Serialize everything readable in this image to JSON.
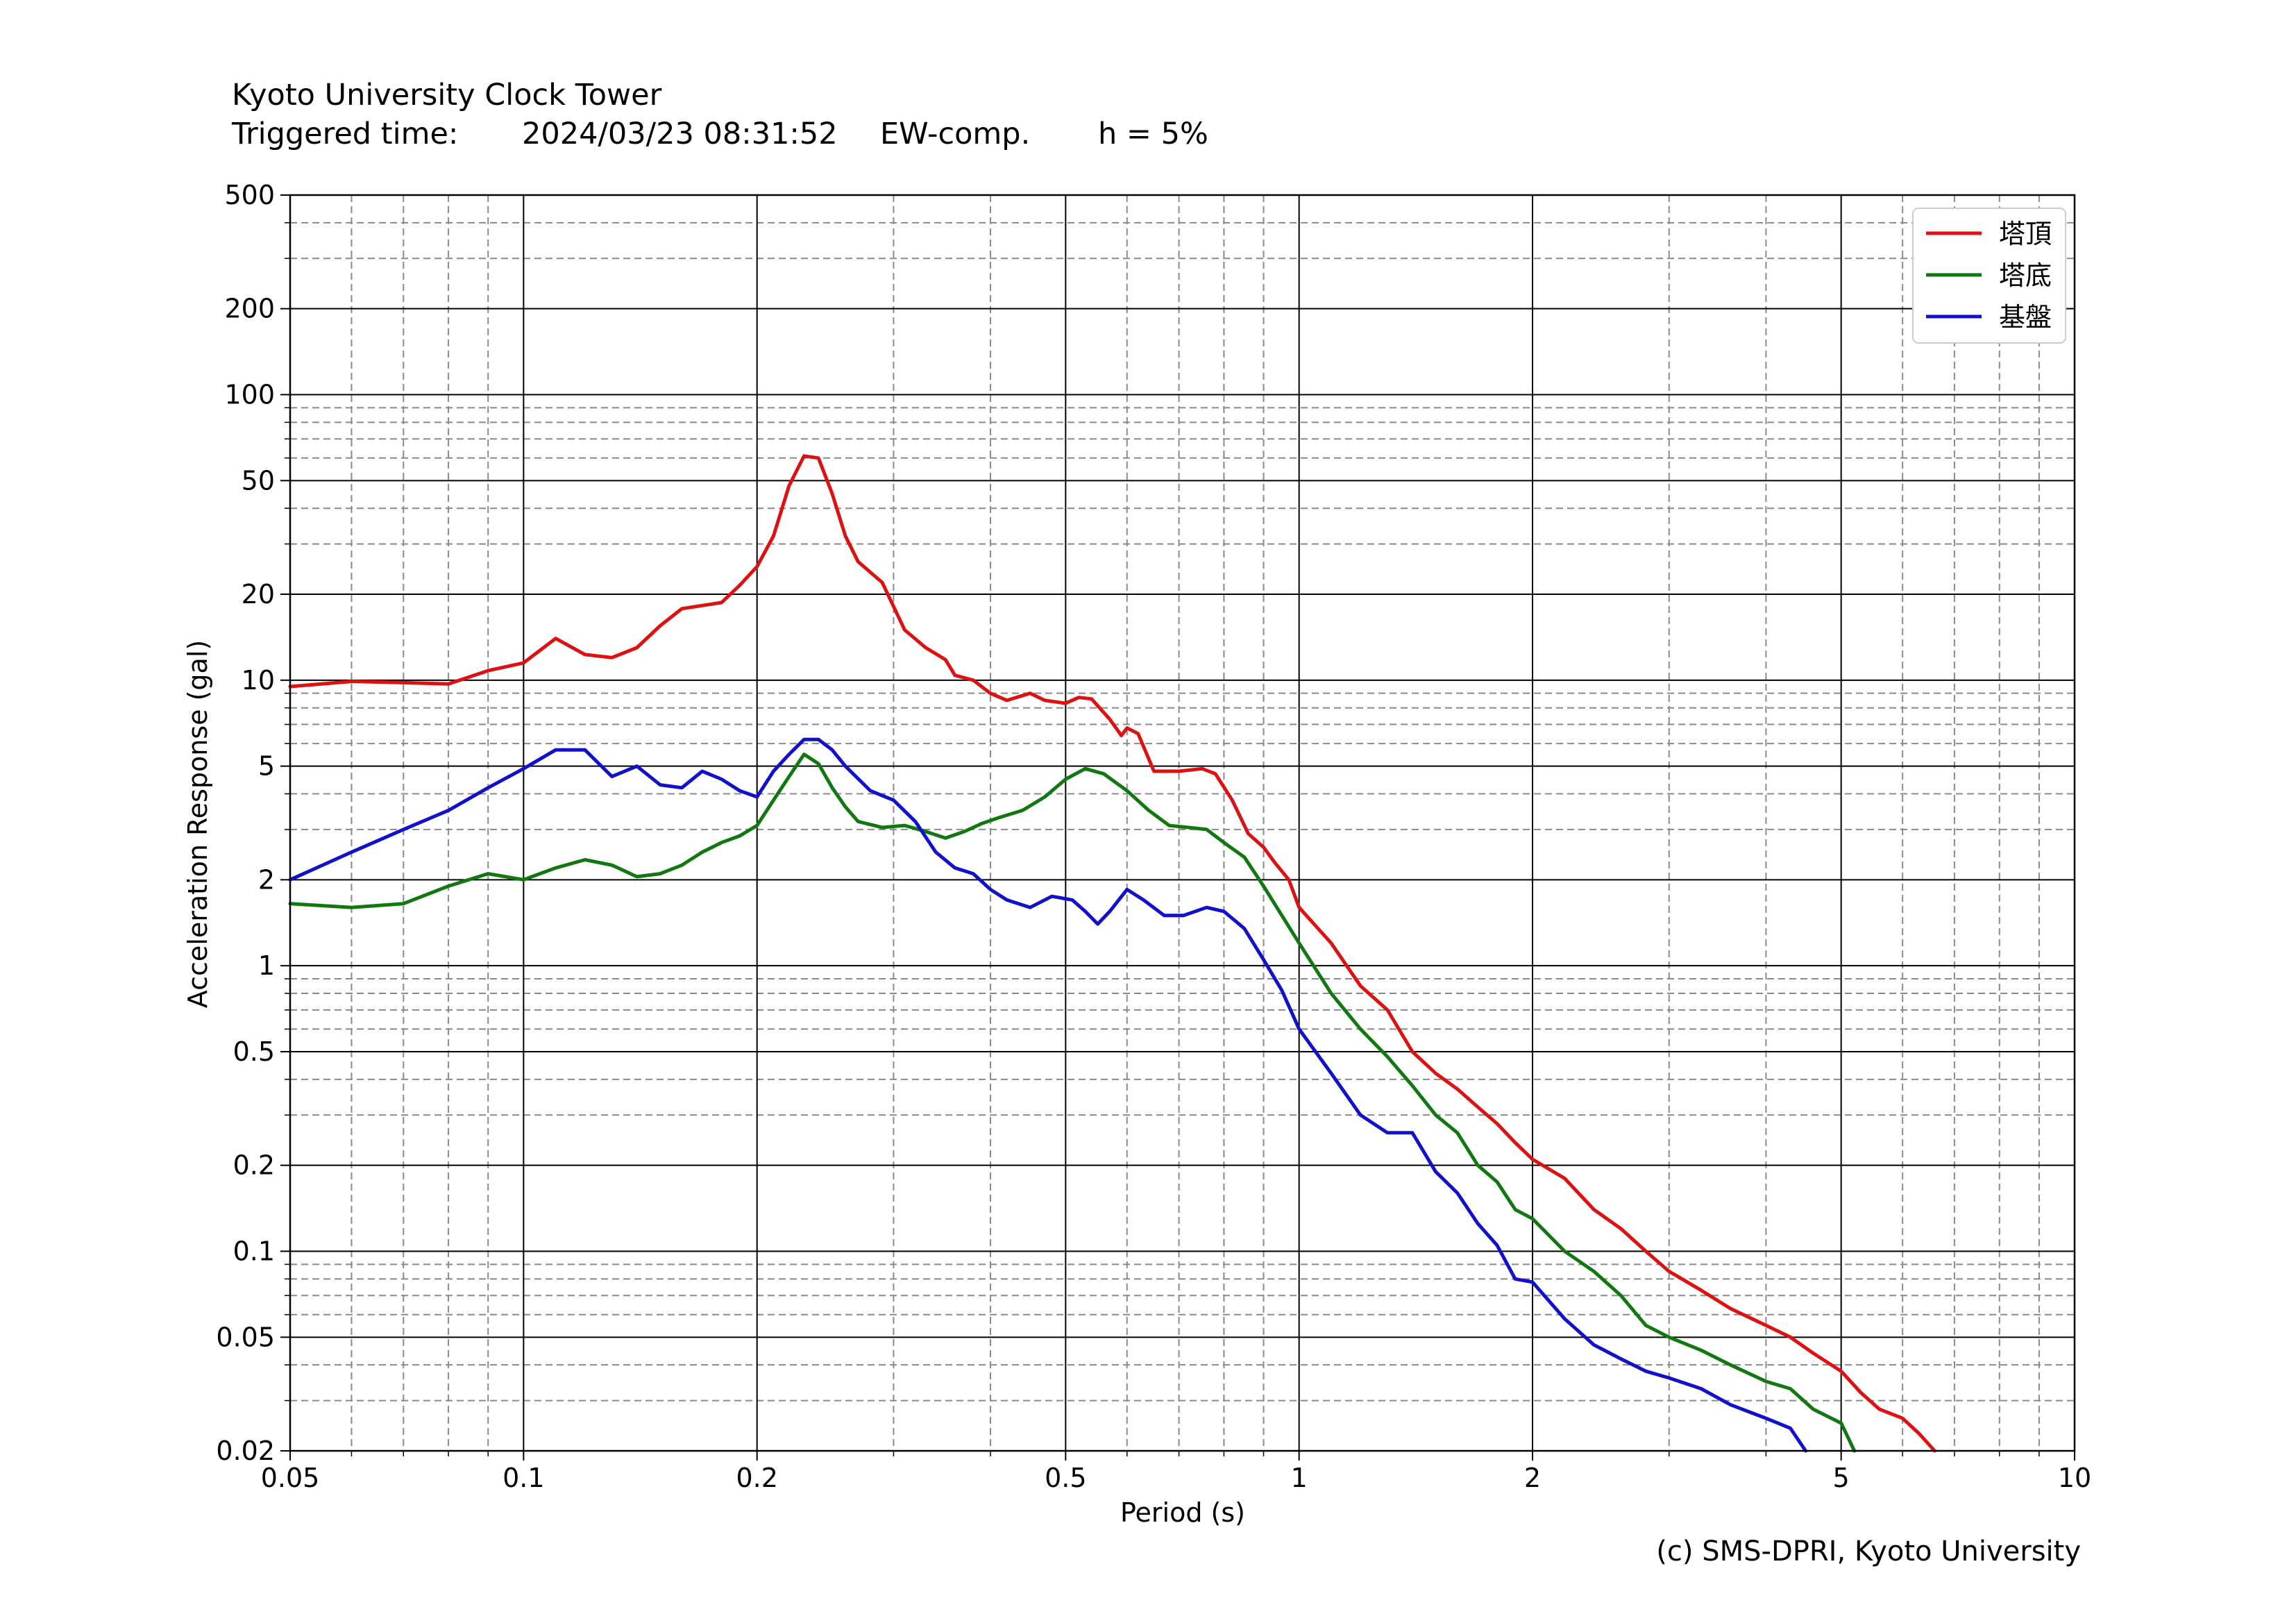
{
  "header": {
    "title": "Kyoto University Clock Tower",
    "triggered_label": "Triggered time:",
    "triggered_value": "2024/03/23 08:31:52",
    "component": "EW-comp.",
    "damping": "h = 5%"
  },
  "footer": {
    "credit": "(c) SMS-DPRI, Kyoto University"
  },
  "chart_data": {
    "type": "line",
    "xlabel": "Period (s)",
    "ylabel": "Acceleration Response (gal)",
    "xscale": "log",
    "yscale": "log",
    "xlim": [
      0.05,
      10
    ],
    "ylim": [
      0.02,
      500
    ],
    "grid": true,
    "legend_position": "top-right",
    "x_ticks": [
      {
        "v": 0.05,
        "label": "0.05"
      },
      {
        "v": 0.1,
        "label": "0.1"
      },
      {
        "v": 0.2,
        "label": "0.2"
      },
      {
        "v": 0.5,
        "label": "0.5"
      },
      {
        "v": 1,
        "label": "1"
      },
      {
        "v": 2,
        "label": "2"
      },
      {
        "v": 5,
        "label": "5"
      },
      {
        "v": 10,
        "label": "10"
      }
    ],
    "y_ticks": [
      {
        "v": 0.02,
        "label": "0.02"
      },
      {
        "v": 0.05,
        "label": "0.05"
      },
      {
        "v": 0.1,
        "label": "0.1"
      },
      {
        "v": 0.2,
        "label": "0.2"
      },
      {
        "v": 0.5,
        "label": "0.5"
      },
      {
        "v": 1,
        "label": "1"
      },
      {
        "v": 2,
        "label": "2"
      },
      {
        "v": 5,
        "label": "5"
      },
      {
        "v": 10,
        "label": "10"
      },
      {
        "v": 20,
        "label": "20"
      },
      {
        "v": 50,
        "label": "50"
      },
      {
        "v": 100,
        "label": "100"
      },
      {
        "v": 200,
        "label": "200"
      },
      {
        "v": 500,
        "label": "500"
      }
    ],
    "series": [
      {
        "name": "塔頂",
        "color": "#dd1111",
        "points": [
          [
            0.05,
            9.5
          ],
          [
            0.06,
            9.9
          ],
          [
            0.07,
            9.8
          ],
          [
            0.08,
            9.7
          ],
          [
            0.09,
            10.8
          ],
          [
            0.1,
            11.5
          ],
          [
            0.11,
            14.0
          ],
          [
            0.12,
            12.3
          ],
          [
            0.13,
            12.0
          ],
          [
            0.14,
            13.0
          ],
          [
            0.15,
            15.5
          ],
          [
            0.16,
            17.8
          ],
          [
            0.18,
            18.7
          ],
          [
            0.19,
            21.5
          ],
          [
            0.2,
            25.0
          ],
          [
            0.21,
            32.0
          ],
          [
            0.22,
            48.0
          ],
          [
            0.23,
            61.0
          ],
          [
            0.24,
            60.0
          ],
          [
            0.25,
            45.0
          ],
          [
            0.26,
            32.0
          ],
          [
            0.27,
            26.0
          ],
          [
            0.29,
            22.0
          ],
          [
            0.31,
            15.0
          ],
          [
            0.33,
            13.0
          ],
          [
            0.35,
            11.8
          ],
          [
            0.36,
            10.4
          ],
          [
            0.38,
            10.0
          ],
          [
            0.4,
            9.0
          ],
          [
            0.42,
            8.5
          ],
          [
            0.45,
            9.0
          ],
          [
            0.47,
            8.5
          ],
          [
            0.5,
            8.3
          ],
          [
            0.52,
            8.7
          ],
          [
            0.54,
            8.6
          ],
          [
            0.57,
            7.3
          ],
          [
            0.59,
            6.4
          ],
          [
            0.6,
            6.8
          ],
          [
            0.62,
            6.5
          ],
          [
            0.65,
            4.8
          ],
          [
            0.7,
            4.8
          ],
          [
            0.75,
            4.9
          ],
          [
            0.78,
            4.7
          ],
          [
            0.82,
            3.8
          ],
          [
            0.86,
            2.9
          ],
          [
            0.9,
            2.6
          ],
          [
            0.93,
            2.3
          ],
          [
            0.97,
            2.0
          ],
          [
            1.0,
            1.6
          ],
          [
            1.1,
            1.2
          ],
          [
            1.2,
            0.85
          ],
          [
            1.3,
            0.7
          ],
          [
            1.4,
            0.5
          ],
          [
            1.5,
            0.42
          ],
          [
            1.6,
            0.37
          ],
          [
            1.7,
            0.32
          ],
          [
            1.8,
            0.28
          ],
          [
            1.9,
            0.24
          ],
          [
            2.0,
            0.21
          ],
          [
            2.2,
            0.18
          ],
          [
            2.4,
            0.14
          ],
          [
            2.6,
            0.12
          ],
          [
            2.8,
            0.1
          ],
          [
            3.0,
            0.085
          ],
          [
            3.3,
            0.073
          ],
          [
            3.6,
            0.063
          ],
          [
            4.0,
            0.055
          ],
          [
            4.3,
            0.05
          ],
          [
            4.6,
            0.044
          ],
          [
            5.0,
            0.038
          ],
          [
            5.3,
            0.032
          ],
          [
            5.6,
            0.028
          ],
          [
            6.0,
            0.026
          ],
          [
            6.3,
            0.023
          ],
          [
            6.6,
            0.02
          ]
        ]
      },
      {
        "name": "塔底",
        "color": "#117711",
        "points": [
          [
            0.05,
            1.65
          ],
          [
            0.06,
            1.6
          ],
          [
            0.07,
            1.65
          ],
          [
            0.08,
            1.9
          ],
          [
            0.09,
            2.1
          ],
          [
            0.1,
            2.0
          ],
          [
            0.11,
            2.2
          ],
          [
            0.12,
            2.35
          ],
          [
            0.13,
            2.25
          ],
          [
            0.14,
            2.05
          ],
          [
            0.15,
            2.1
          ],
          [
            0.16,
            2.25
          ],
          [
            0.17,
            2.5
          ],
          [
            0.18,
            2.7
          ],
          [
            0.19,
            2.85
          ],
          [
            0.2,
            3.1
          ],
          [
            0.21,
            3.8
          ],
          [
            0.22,
            4.6
          ],
          [
            0.23,
            5.5
          ],
          [
            0.24,
            5.1
          ],
          [
            0.25,
            4.2
          ],
          [
            0.26,
            3.6
          ],
          [
            0.27,
            3.2
          ],
          [
            0.29,
            3.05
          ],
          [
            0.31,
            3.1
          ],
          [
            0.33,
            2.95
          ],
          [
            0.35,
            2.8
          ],
          [
            0.37,
            2.95
          ],
          [
            0.39,
            3.15
          ],
          [
            0.41,
            3.3
          ],
          [
            0.44,
            3.5
          ],
          [
            0.47,
            3.9
          ],
          [
            0.5,
            4.5
          ],
          [
            0.53,
            4.9
          ],
          [
            0.56,
            4.7
          ],
          [
            0.6,
            4.1
          ],
          [
            0.64,
            3.5
          ],
          [
            0.68,
            3.1
          ],
          [
            0.72,
            3.05
          ],
          [
            0.76,
            3.0
          ],
          [
            0.8,
            2.7
          ],
          [
            0.85,
            2.4
          ],
          [
            0.9,
            1.9
          ],
          [
            0.95,
            1.5
          ],
          [
            1.0,
            1.2
          ],
          [
            1.1,
            0.8
          ],
          [
            1.2,
            0.6
          ],
          [
            1.3,
            0.48
          ],
          [
            1.4,
            0.38
          ],
          [
            1.5,
            0.3
          ],
          [
            1.6,
            0.26
          ],
          [
            1.7,
            0.2
          ],
          [
            1.8,
            0.175
          ],
          [
            1.9,
            0.14
          ],
          [
            2.0,
            0.13
          ],
          [
            2.2,
            0.1
          ],
          [
            2.4,
            0.085
          ],
          [
            2.6,
            0.07
          ],
          [
            2.8,
            0.055
          ],
          [
            3.0,
            0.05
          ],
          [
            3.3,
            0.045
          ],
          [
            3.6,
            0.04
          ],
          [
            4.0,
            0.035
          ],
          [
            4.3,
            0.033
          ],
          [
            4.6,
            0.028
          ],
          [
            5.0,
            0.025
          ],
          [
            5.2,
            0.02
          ]
        ]
      },
      {
        "name": "基盤",
        "color": "#1111cc",
        "points": [
          [
            0.05,
            2.0
          ],
          [
            0.06,
            2.5
          ],
          [
            0.07,
            3.0
          ],
          [
            0.08,
            3.5
          ],
          [
            0.09,
            4.2
          ],
          [
            0.1,
            4.9
          ],
          [
            0.11,
            5.7
          ],
          [
            0.12,
            5.7
          ],
          [
            0.13,
            4.6
          ],
          [
            0.14,
            5.0
          ],
          [
            0.15,
            4.3
          ],
          [
            0.16,
            4.2
          ],
          [
            0.17,
            4.8
          ],
          [
            0.18,
            4.5
          ],
          [
            0.19,
            4.1
          ],
          [
            0.2,
            3.9
          ],
          [
            0.21,
            4.8
          ],
          [
            0.22,
            5.5
          ],
          [
            0.23,
            6.2
          ],
          [
            0.24,
            6.2
          ],
          [
            0.25,
            5.7
          ],
          [
            0.26,
            5.0
          ],
          [
            0.28,
            4.1
          ],
          [
            0.3,
            3.8
          ],
          [
            0.32,
            3.2
          ],
          [
            0.34,
            2.5
          ],
          [
            0.36,
            2.2
          ],
          [
            0.38,
            2.1
          ],
          [
            0.4,
            1.85
          ],
          [
            0.42,
            1.7
          ],
          [
            0.45,
            1.6
          ],
          [
            0.48,
            1.75
          ],
          [
            0.51,
            1.7
          ],
          [
            0.53,
            1.55
          ],
          [
            0.55,
            1.4
          ],
          [
            0.57,
            1.55
          ],
          [
            0.6,
            1.85
          ],
          [
            0.63,
            1.7
          ],
          [
            0.67,
            1.5
          ],
          [
            0.71,
            1.5
          ],
          [
            0.76,
            1.6
          ],
          [
            0.8,
            1.55
          ],
          [
            0.85,
            1.35
          ],
          [
            0.9,
            1.05
          ],
          [
            0.95,
            0.82
          ],
          [
            1.0,
            0.6
          ],
          [
            1.1,
            0.42
          ],
          [
            1.2,
            0.3
          ],
          [
            1.3,
            0.26
          ],
          [
            1.4,
            0.26
          ],
          [
            1.5,
            0.19
          ],
          [
            1.6,
            0.16
          ],
          [
            1.7,
            0.125
          ],
          [
            1.8,
            0.105
          ],
          [
            1.9,
            0.08
          ],
          [
            2.0,
            0.078
          ],
          [
            2.2,
            0.058
          ],
          [
            2.4,
            0.047
          ],
          [
            2.6,
            0.042
          ],
          [
            2.8,
            0.038
          ],
          [
            3.0,
            0.036
          ],
          [
            3.3,
            0.033
          ],
          [
            3.6,
            0.029
          ],
          [
            4.0,
            0.026
          ],
          [
            4.3,
            0.024
          ],
          [
            4.5,
            0.02
          ]
        ]
      }
    ]
  }
}
